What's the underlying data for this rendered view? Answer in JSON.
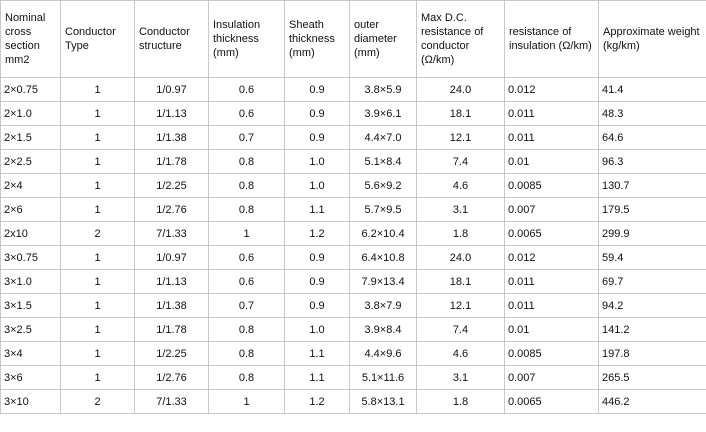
{
  "headers": [
    "Nominal cross section mm2",
    "Conductor Type",
    "Conductor structure",
    "Insulation thickness (mm)",
    "Sheath thickness (mm)",
    "outer diameter (mm)",
    "Max D.C. resistance of conductor (Ω/km)",
    "resistance of insulation (Ω/km)",
    "Approximate weight (kg/km)"
  ],
  "rows": [
    [
      "2×0.75",
      "1",
      "1/0.97",
      "0.6",
      "0.9",
      "3.8×5.9",
      "24.0",
      "0.012",
      "41.4"
    ],
    [
      "2×1.0",
      "1",
      "1/1.13",
      "0.6",
      "0.9",
      "3.9×6.1",
      "18.1",
      "0.011",
      "48.3"
    ],
    [
      "2×1.5",
      "1",
      "1/1.38",
      "0.7",
      "0.9",
      "4.4×7.0",
      "12.1",
      "0.011",
      "64.6"
    ],
    [
      "2×2.5",
      "1",
      "1/1.78",
      "0.8",
      "1.0",
      "5.1×8.4",
      "7.4",
      "0.01",
      "96.3"
    ],
    [
      "2×4",
      "1",
      "1/2.25",
      "0.8",
      "1.0",
      "5.6×9.2",
      "4.6",
      "0.0085",
      "130.7"
    ],
    [
      "2×6",
      "1",
      "1/2.76",
      "0.8",
      "1.1",
      "5.7×9.5",
      "3.1",
      "0.007",
      "179.5"
    ],
    [
      "2x10",
      "2",
      "7/1.33",
      "1",
      "1.2",
      "6.2×10.4",
      "1.8",
      "0.0065",
      "299.9"
    ],
    [
      "3×0.75",
      "1",
      "1/0.97",
      "0.6",
      "0.9",
      "6.4×10.8",
      "24.0",
      "0.012",
      "59.4"
    ],
    [
      "3×1.0",
      "1",
      "1/1.13",
      "0.6",
      "0.9",
      "7.9×13.4",
      "18.1",
      "0.011",
      "69.7"
    ],
    [
      "3×1.5",
      "1",
      "1/1.38",
      "0.7",
      "0.9",
      "3.8×7.9",
      "12.1",
      "0.011",
      "94.2"
    ],
    [
      "3×2.5",
      "1",
      "1/1.78",
      "0.8",
      "1.0",
      "3.9×8.4",
      "7.4",
      "0.01",
      "141.2"
    ],
    [
      "3×4",
      "1",
      "1/2.25",
      "0.8",
      "1.1",
      "4.4×9.6",
      "4.6",
      "0.0085",
      "197.8"
    ],
    [
      "3×6",
      "1",
      "1/2.76",
      "0.8",
      "1.1",
      "5.1×11.6",
      "3.1",
      "0.007",
      "265.5"
    ],
    [
      "3×10",
      "2",
      "7/1.33",
      "1",
      "1.2",
      "5.8×13.1",
      "1.8",
      "0.0065",
      "446.2"
    ]
  ]
}
